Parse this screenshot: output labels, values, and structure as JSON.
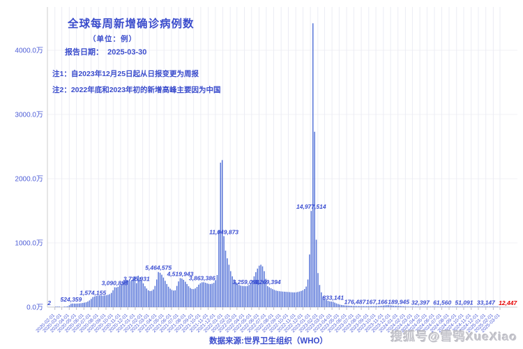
{
  "header": {
    "title": "全球每周新增确诊病例数",
    "unit": "（单位：例）",
    "report_label": "报告日期：",
    "report_date": "2025-03-30"
  },
  "notes": [
    "注1：自2023年12月25日起从日报变更为周报",
    "注2：2022年底和2023年初的新增高峰主要因为中国"
  ],
  "source": "数据来源:世界卫生组织（WHO）",
  "watermark": "搜狐号@雪鸮XueXiao",
  "colors": {
    "bar": "#5674d8",
    "label_blue": "#3b4ed2",
    "label_red": "#e60000",
    "axis_text": "#4c5cd6",
    "grid_v": "#ebecf4",
    "grid_h": "#f0f0f6",
    "axis_line": "#cccccc"
  },
  "chart_data": {
    "type": "bar",
    "title": "全球每周新增确诊病例数",
    "unit": "例",
    "xlabel": "",
    "ylabel": "",
    "interval": "weekly",
    "start_date": "2020-01-05",
    "end_date": "2025-03-30",
    "grid": true,
    "legend": "none",
    "ylim": [
      0,
      46000000
    ],
    "y_tick_interval": 10000000,
    "y_ticks": [
      "0.0万",
      "1000.0万",
      "2000.0万",
      "3000.0万",
      "4000.0万"
    ],
    "values": [
      2,
      500,
      2000,
      10000,
      24000,
      32000,
      26000,
      16000,
      12000,
      20000,
      45000,
      120000,
      300000,
      524359,
      560000,
      550000,
      540000,
      560000,
      580000,
      610000,
      650000,
      700000,
      760000,
      880000,
      1050000,
      1280000,
      1574155,
      1660000,
      1740000,
      1800000,
      1840000,
      1820000,
      1790000,
      1810000,
      1860000,
      1920000,
      2020000,
      2220000,
      2620000,
      3090898,
      3060000,
      3160000,
      3360000,
      3620000,
      3880000,
      4080000,
      4200000,
      4140000,
      4060000,
      4200000,
      4500000,
      4800000,
      3735931,
      4900000,
      4650000,
      4200000,
      3700000,
      3250000,
      2900000,
      2620000,
      2500000,
      2550000,
      2750000,
      3300000,
      4300000,
      5464575,
      5350000,
      5050000,
      4600000,
      4100000,
      3600000,
      3180000,
      2880000,
      2680000,
      2580000,
      2620000,
      3300000,
      4000000,
      4519943,
      4450000,
      4250000,
      3950000,
      3600000,
      3250000,
      2980000,
      2830000,
      2800000,
      2920000,
      3150000,
      3500000,
      3720000,
      3863386,
      3880000,
      3800000,
      3700000,
      3620000,
      3600000,
      3650000,
      3780000,
      4200000,
      5000000,
      12000000,
      22500000,
      22900000,
      11049873,
      8800000,
      7600000,
      6600000,
      5600000,
      4800000,
      4300000,
      3900000,
      3600000,
      3450000,
      3350000,
      3300000,
      3280000,
      3259098,
      3300000,
      3450000,
      3750000,
      4200000,
      4800000,
      5450000,
      6000000,
      6450000,
      6600000,
      6350000,
      5600000,
      4400000,
      3269394,
      3100000,
      2950000,
      2800000,
      2680000,
      2580000,
      2520000,
      2480000,
      2450000,
      2420000,
      2400000,
      2380000,
      2360000,
      2340000,
      2320000,
      2300000,
      2290000,
      2310000,
      2360000,
      2430000,
      2520000,
      2620000,
      2820000,
      3200000,
      4300000,
      8200000,
      14977514,
      44200000,
      27310000,
      10500000,
      5300000,
      3450000,
      2300000,
      1650000,
      1300000,
      1100000,
      980000,
      900000,
      860000,
      833141,
      700000,
      580000,
      480000,
      400000,
      340000,
      300000,
      270000,
      250000,
      230000,
      210000,
      195000,
      185000,
      176487,
      170000,
      165000,
      160000,
      158000,
      155000,
      153000,
      152000,
      154000,
      158000,
      162000,
      165000,
      166000,
      167166,
      175000,
      190000,
      210000,
      240000,
      270000,
      290000,
      300000,
      280000,
      250000,
      220000,
      200000,
      192000,
      189945,
      170000,
      150000,
      130000,
      110000,
      95000,
      80000,
      70000,
      60000,
      52000,
      45000,
      39000,
      35000,
      32397,
      34000,
      37000,
      40000,
      44000,
      48000,
      52000,
      56000,
      60000,
      63000,
      64000,
      63000,
      62000,
      61560,
      61000,
      60000,
      59000,
      58000,
      57000,
      56000,
      55000,
      54500,
      54000,
      53000,
      52000,
      51500,
      51091,
      50000,
      48000,
      46000,
      44000,
      42000,
      40000,
      39000,
      38000,
      37000,
      36000,
      35000,
      34000,
      33147,
      31000,
      29000,
      27000,
      25000,
      23000,
      21000,
      20000,
      19000,
      18000,
      17000,
      16000,
      14500,
      12447
    ],
    "labeled_points": [
      {
        "index": 0,
        "text": "2",
        "red": false
      },
      {
        "index": 13,
        "text": "524,359",
        "red": false
      },
      {
        "index": 26,
        "text": "1,574,155",
        "red": false
      },
      {
        "index": 39,
        "text": "3,090,898",
        "red": false
      },
      {
        "index": 52,
        "text": "3,735,931",
        "red": false
      },
      {
        "index": 65,
        "text": "5,464,575",
        "red": false
      },
      {
        "index": 78,
        "text": "4,519,943",
        "red": false
      },
      {
        "index": 91,
        "text": "3,863,386",
        "red": false
      },
      {
        "index": 104,
        "text": "11,049,873",
        "red": false
      },
      {
        "index": 117,
        "text": "3,259,098",
        "red": false
      },
      {
        "index": 130,
        "text": "3,269,394",
        "red": false
      },
      {
        "index": 156,
        "text": "14,977,514",
        "red": false
      },
      {
        "index": 169,
        "text": "833,141",
        "red": false
      },
      {
        "index": 182,
        "text": "176,487",
        "red": false
      },
      {
        "index": 195,
        "text": "167,166",
        "red": false
      },
      {
        "index": 208,
        "text": "189,945",
        "red": false
      },
      {
        "index": 221,
        "text": "32,397",
        "red": false
      },
      {
        "index": 234,
        "text": "61,560",
        "red": false
      },
      {
        "index": 247,
        "text": "51,091",
        "red": false
      },
      {
        "index": 260,
        "text": "33,147",
        "red": false
      },
      {
        "index": 273,
        "text": "12,447",
        "red": true
      }
    ],
    "x_ticks": [
      "2020-02-01",
      "2020-03-01",
      "2020-04-01",
      "2020-05-01",
      "2020-06-01",
      "2020-07-01",
      "2020-08-01",
      "2020-09-01",
      "2020-10-01",
      "2020-11-01",
      "2020-12-01",
      "2021-01-01",
      "2021-02-01",
      "2021-03-01",
      "2021-04-01",
      "2021-05-01",
      "2021-06-01",
      "2021-07-01",
      "2021-08-01",
      "2021-09-01",
      "2021-10-01",
      "2021-11-01",
      "2021-12-01",
      "2022-01-01",
      "2022-02-01",
      "2022-03-01",
      "2022-04-01",
      "2022-05-01",
      "2022-06-01",
      "2022-07-01",
      "2022-08-01",
      "2022-09-01",
      "2022-10-01",
      "2022-11-01",
      "2022-12-01",
      "2023-01-01",
      "2023-02-01",
      "2023-03-01",
      "2023-04-01",
      "2023-05-01",
      "2023-06-01",
      "2023-07-01",
      "2023-08-01",
      "2023-09-01",
      "2023-10-01",
      "2023-11-01",
      "2023-12-01",
      "2024-01-01",
      "2024-02-01",
      "2024-03-01",
      "2024-04-01",
      "2024-05-01",
      "2024-06-01",
      "2024-07-01",
      "2024-08-01",
      "2024-09-01",
      "2024-10-01",
      "2024-11-01",
      "2024-12-01",
      "2025-01-01",
      "2025-02-01",
      "2025-03-01"
    ]
  }
}
